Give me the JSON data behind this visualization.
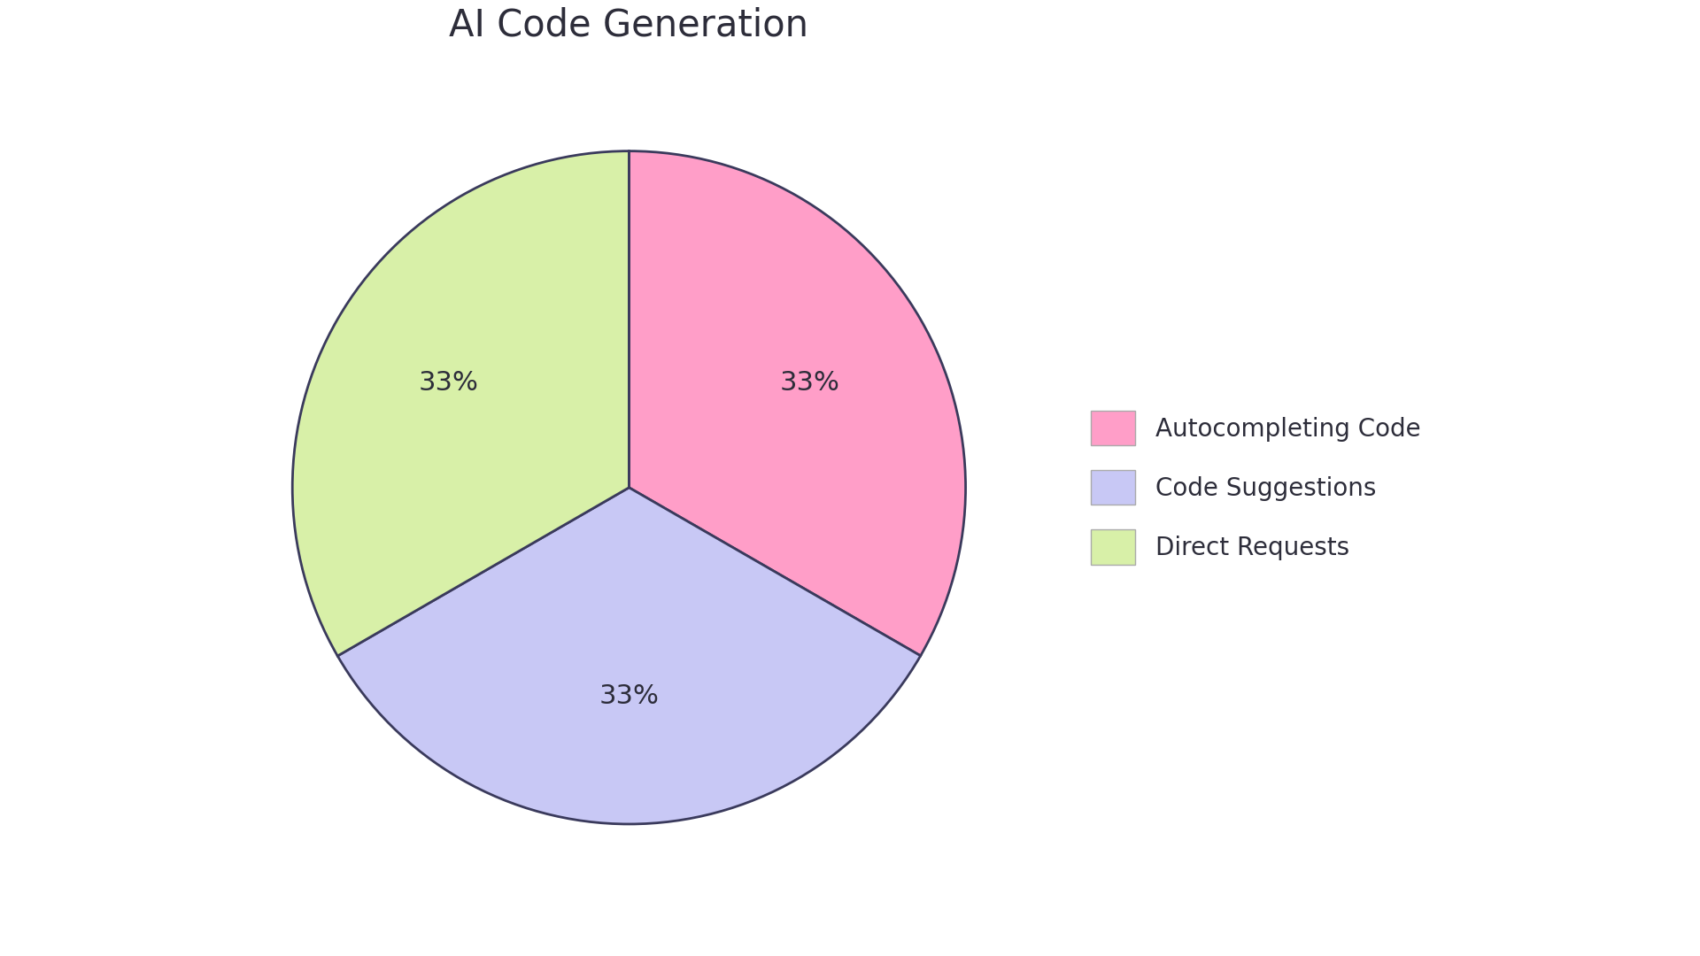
{
  "title": "AI Code Generation",
  "title_fontsize": 30,
  "title_color": "#2d2d3a",
  "labels": [
    "Autocompleting Code",
    "Code Suggestions",
    "Direct Requests"
  ],
  "values": [
    33.33,
    33.33,
    33.34
  ],
  "colors": [
    "#ff9ec8",
    "#c8c8f5",
    "#d8f0a8"
  ],
  "edge_color": "#3a3a5c",
  "edge_width": 2.0,
  "text_color": "#2d2d3a",
  "text_fontsize": 22,
  "legend_fontsize": 20,
  "background_color": "#ffffff",
  "startangle": 90,
  "pctdistance": 0.62
}
